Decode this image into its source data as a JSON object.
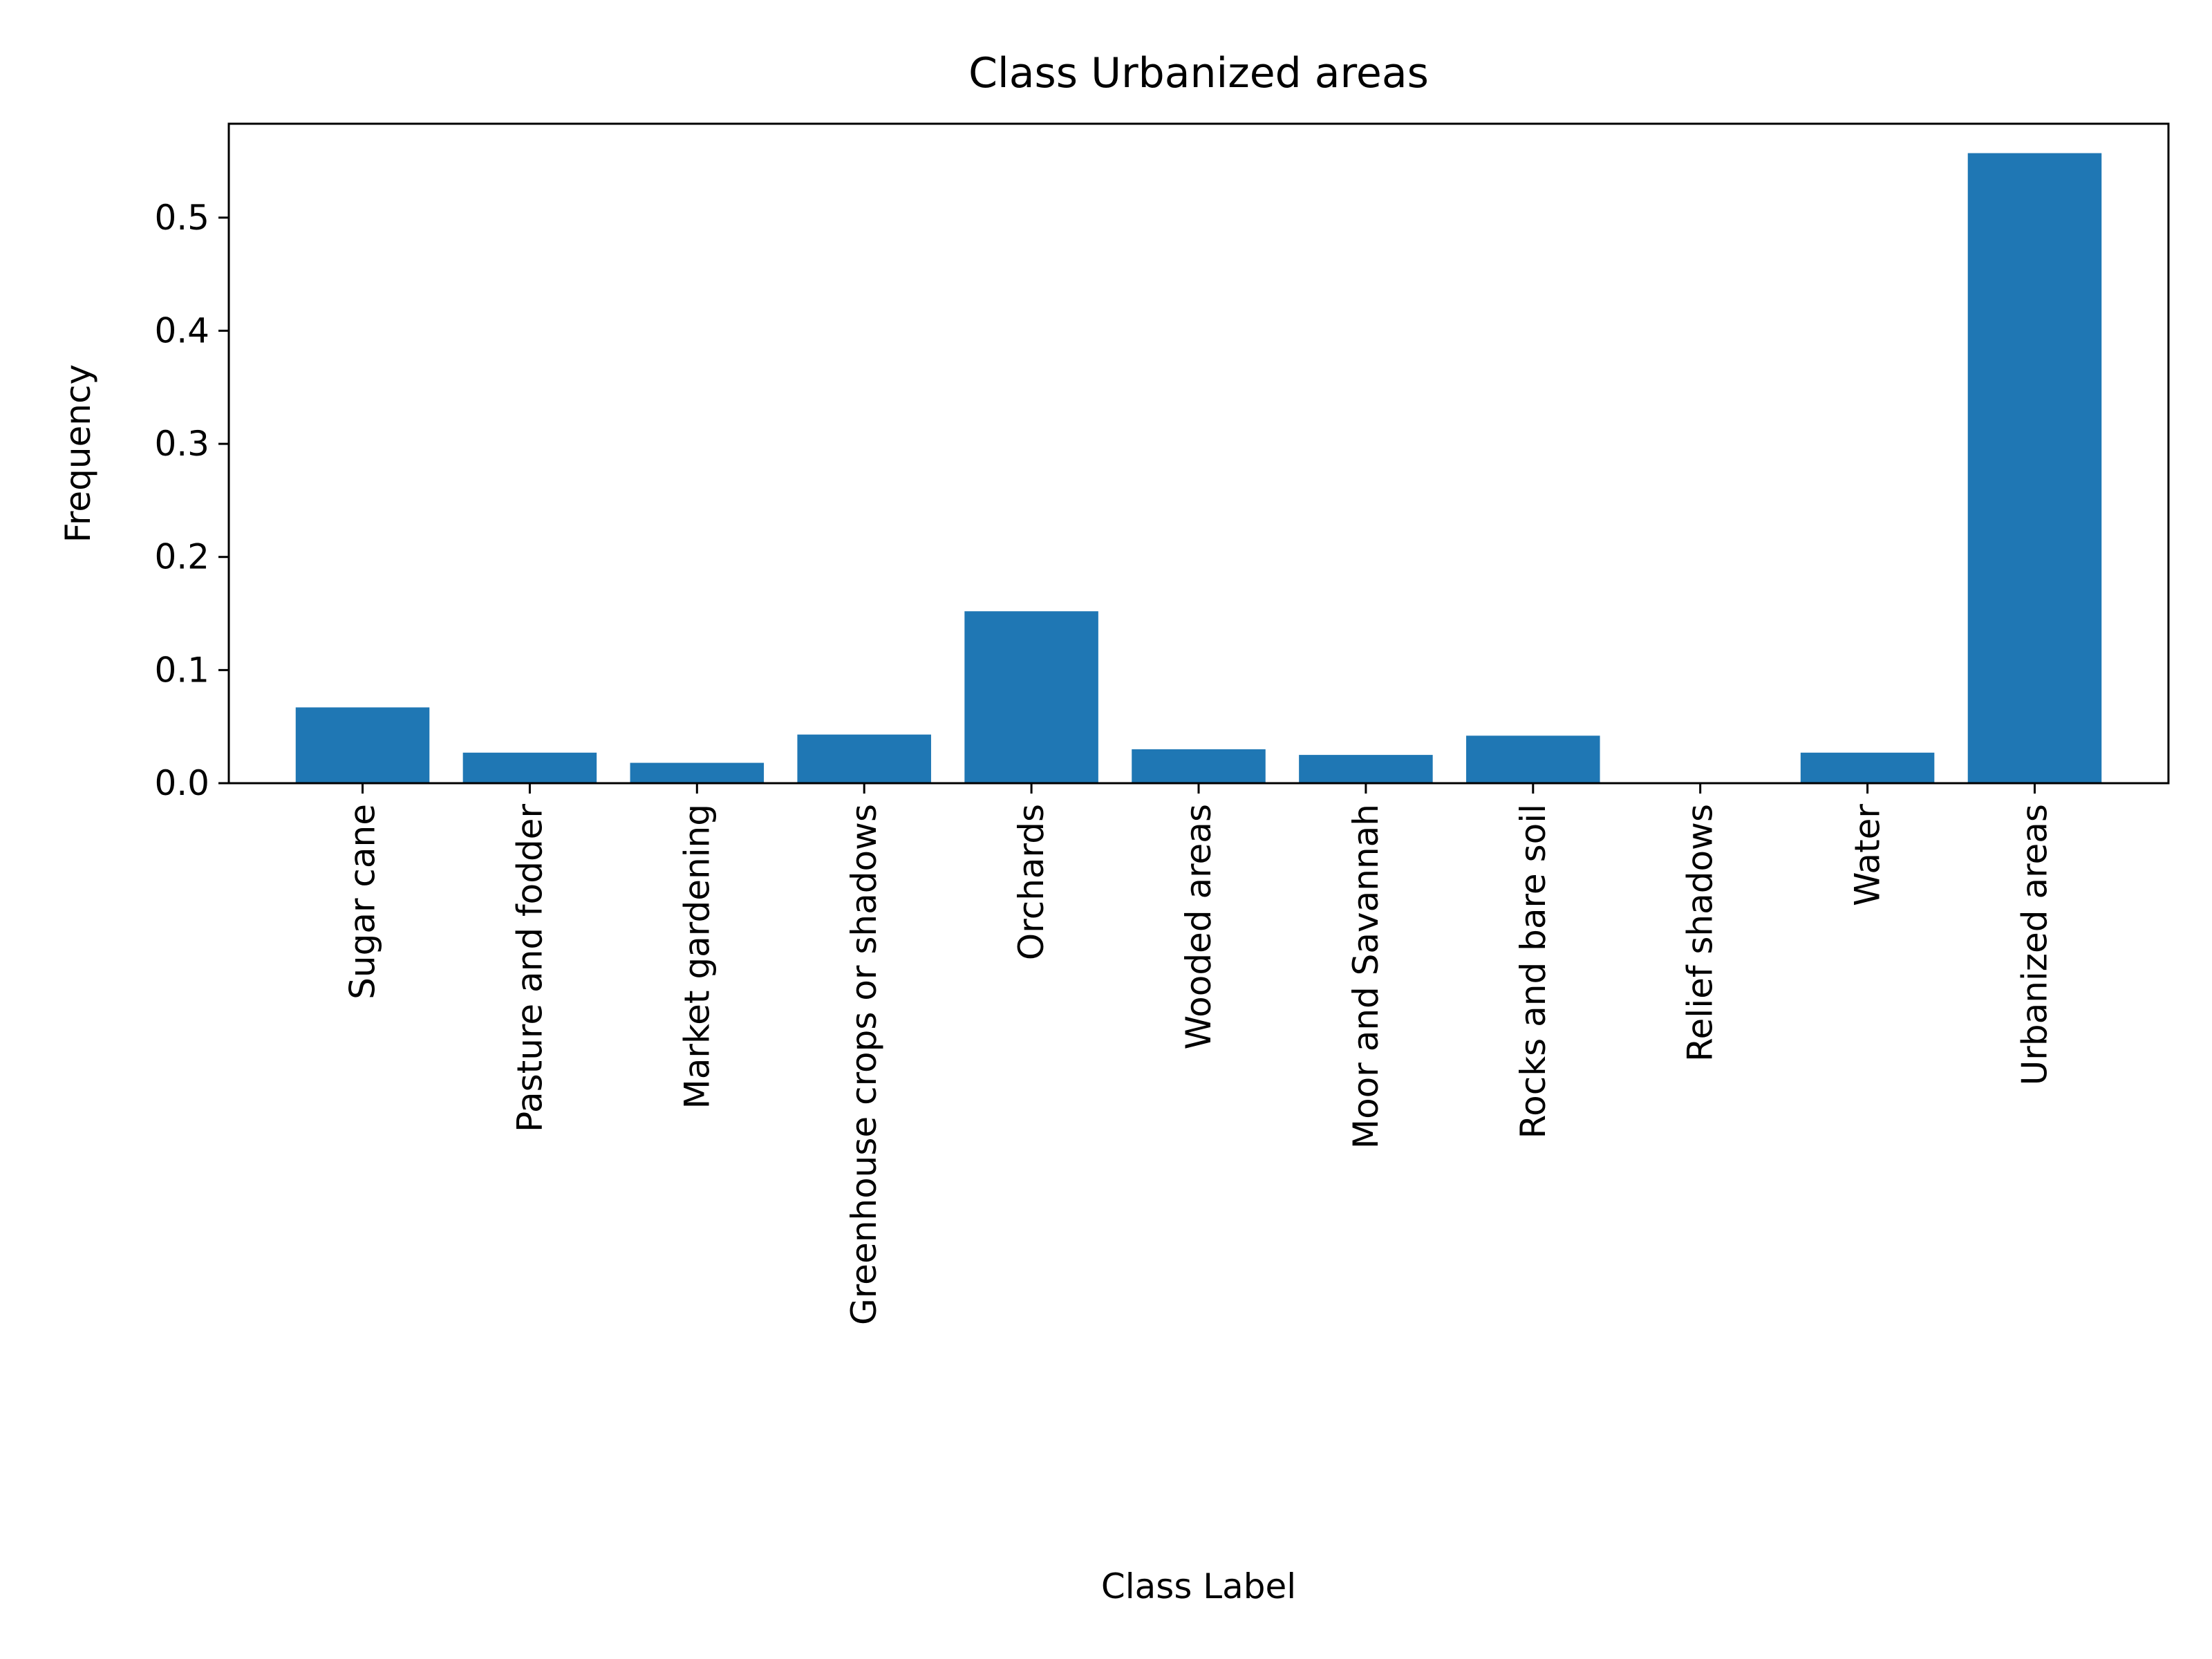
{
  "chart_data": {
    "type": "bar",
    "title": "Class Urbanized areas",
    "xlabel": "Class Label",
    "ylabel": "Frequency",
    "categories": [
      "Sugar cane",
      "Pasture and fodder",
      "Market gardening",
      "Greenhouse crops or shadows",
      "Orchards",
      "Wooded areas",
      "Moor and Savannah",
      "Rocks and bare soil",
      "Relief shadows",
      "Water",
      "Urbanized areas"
    ],
    "values": [
      0.067,
      0.027,
      0.018,
      0.043,
      0.152,
      0.03,
      0.025,
      0.042,
      0.0,
      0.027,
      0.557
    ],
    "ylim": [
      0,
      0.583
    ],
    "yticks": [
      0.0,
      0.1,
      0.2,
      0.3,
      0.4,
      0.5
    ],
    "ytick_labels": [
      "0.0",
      "0.1",
      "0.2",
      "0.3",
      "0.4",
      "0.5"
    ],
    "grid": false,
    "bar_color": "#1f77b4"
  }
}
